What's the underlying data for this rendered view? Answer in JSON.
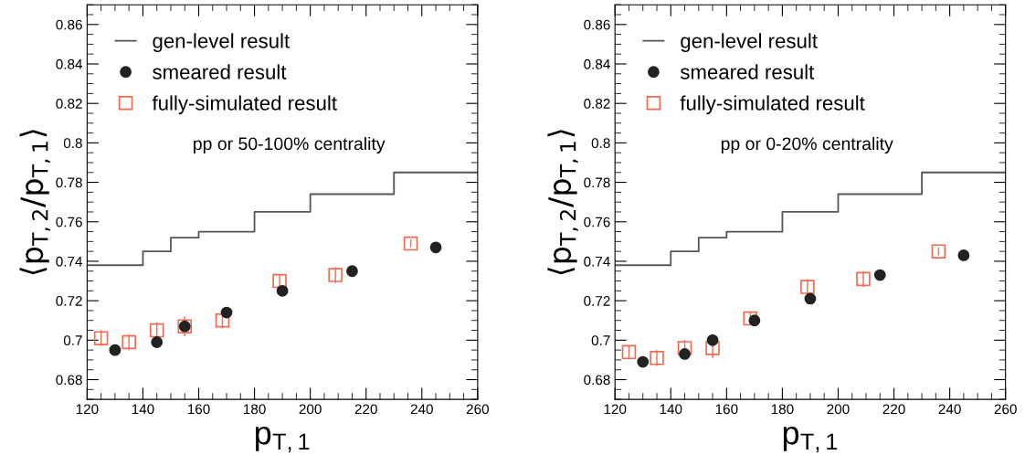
{
  "chart_data": [
    {
      "type": "scatter",
      "xlabel": "p$_{T,1}$",
      "ylabel": "⟨p$_{T,2}$/p$_{T,1}$⟩",
      "xlim": [
        120,
        260
      ],
      "ylim": [
        0.67,
        0.87
      ],
      "xticks": [
        120,
        140,
        160,
        180,
        200,
        220,
        240,
        260
      ],
      "yticks": [
        0.68,
        0.7,
        0.72,
        0.74,
        0.76,
        0.78,
        0.8,
        0.82,
        0.84,
        0.86
      ],
      "legend": "top left",
      "grid": false,
      "annotations": [
        "pp or 50-100% centrality"
      ],
      "series": [
        {
          "name": "gen-level result",
          "type": "step",
          "color": "#555555",
          "x": [
            120,
            140,
            150,
            160,
            180,
            200,
            230,
            260
          ],
          "values": [
            0.738,
            0.745,
            0.752,
            0.755,
            0.765,
            0.774,
            0.785,
            0.785
          ]
        },
        {
          "name": "smeared result",
          "marker": "circle",
          "color": "#222222",
          "x": [
            130,
            145,
            155,
            170,
            190,
            215,
            245
          ],
          "values": [
            0.695,
            0.699,
            0.707,
            0.714,
            0.725,
            0.735,
            0.747
          ]
        },
        {
          "name": "fully-simulated result",
          "marker": "square",
          "color": "#f26b4f",
          "x": [
            125,
            135,
            145,
            155,
            168.5,
            189,
            209,
            236
          ],
          "values": [
            0.701,
            0.699,
            0.705,
            0.707,
            0.71,
            0.73,
            0.733,
            0.749
          ],
          "errors": [
            0.004,
            0.004,
            0.004,
            0.005,
            0.004,
            0.003,
            0.004,
            0.002
          ]
        }
      ]
    },
    {
      "type": "scatter",
      "xlabel": "p$_{T,1}$",
      "ylabel": "⟨p$_{T,2}$/p$_{T,1}$⟩",
      "xlim": [
        120,
        260
      ],
      "ylim": [
        0.67,
        0.87
      ],
      "xticks": [
        120,
        140,
        160,
        180,
        200,
        220,
        240,
        260
      ],
      "yticks": [
        0.68,
        0.7,
        0.72,
        0.74,
        0.76,
        0.78,
        0.8,
        0.82,
        0.84,
        0.86
      ],
      "legend": "top left",
      "grid": false,
      "annotations": [
        "pp or 0-20% centrality"
      ],
      "series": [
        {
          "name": "gen-level result",
          "type": "step",
          "color": "#555555",
          "x": [
            120,
            140,
            150,
            160,
            180,
            200,
            230,
            260
          ],
          "values": [
            0.738,
            0.745,
            0.752,
            0.755,
            0.765,
            0.774,
            0.785,
            0.785
          ]
        },
        {
          "name": "smeared result",
          "marker": "circle",
          "color": "#222222",
          "x": [
            130,
            145,
            155,
            170,
            190,
            215,
            245
          ],
          "values": [
            0.689,
            0.693,
            0.7,
            0.71,
            0.721,
            0.733,
            0.743
          ]
        },
        {
          "name": "fully-simulated result",
          "marker": "square",
          "color": "#f26b4f",
          "x": [
            125,
            135,
            145,
            155,
            168.5,
            189,
            209,
            236
          ],
          "values": [
            0.694,
            0.691,
            0.696,
            0.696,
            0.711,
            0.727,
            0.731,
            0.745
          ],
          "errors": [
            0.003,
            0.004,
            0.004,
            0.005,
            0.003,
            0.004,
            0.004,
            0.002
          ]
        }
      ]
    }
  ]
}
